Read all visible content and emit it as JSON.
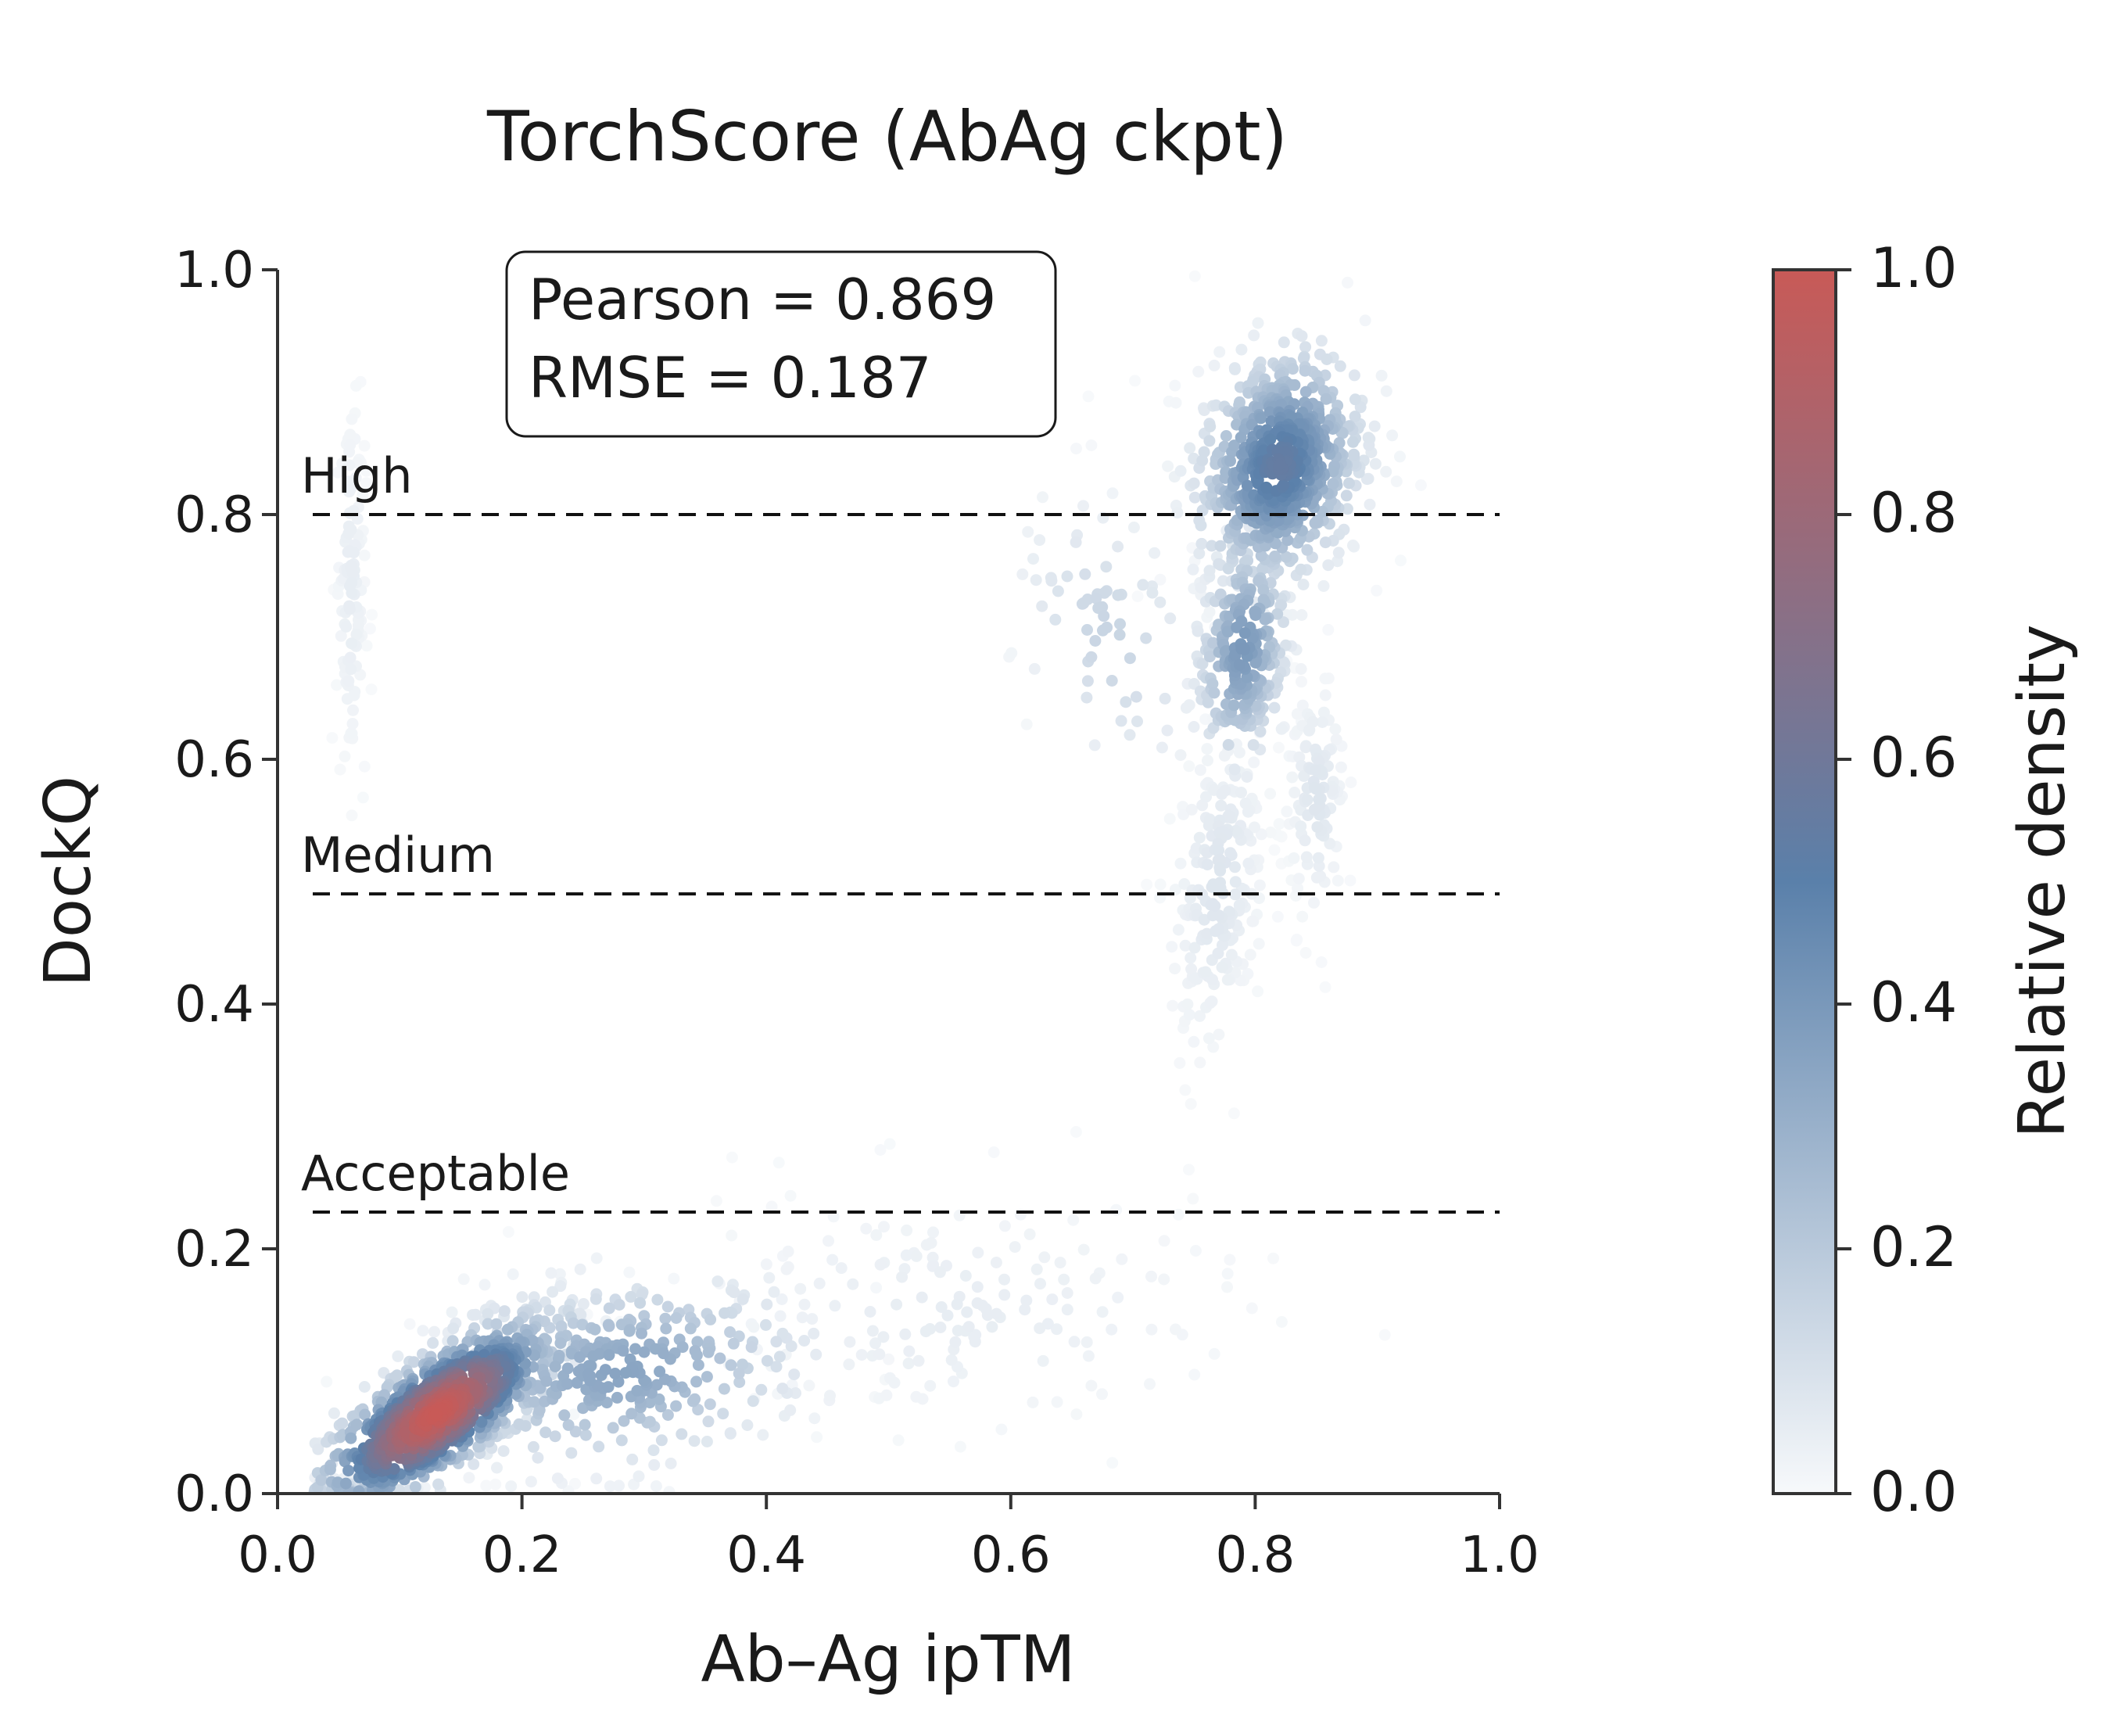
{
  "chart_data": {
    "type": "scatter",
    "title": "TorchScore (AbAg ckpt)",
    "xlabel": "Ab–Ag ipTM",
    "ylabel": "DockQ",
    "xlim": [
      0.0,
      1.0
    ],
    "ylim": [
      0.0,
      1.0
    ],
    "x_ticks": [
      "0.0",
      "0.2",
      "0.4",
      "0.6",
      "0.8",
      "1.0"
    ],
    "y_ticks": [
      "0.0",
      "0.2",
      "0.4",
      "0.6",
      "0.8",
      "1.0"
    ],
    "grid": false,
    "annotation": {
      "lines": [
        "Pearson = 0.869",
        "RMSE = 0.187"
      ],
      "pearson": 0.869,
      "rmse": 0.187
    },
    "thresholds": [
      {
        "label": "High",
        "y": 0.8
      },
      {
        "label": "Medium",
        "y": 0.49
      },
      {
        "label": "Acceptable",
        "y": 0.23
      }
    ],
    "colorbar": {
      "label": "Relative density",
      "range": [
        0.0,
        1.0
      ],
      "ticks": [
        "0.0",
        "0.2",
        "0.4",
        "0.6",
        "0.8",
        "1.0"
      ],
      "colors": {
        "low": "#f7f9fb",
        "mid": "#5a80aa",
        "high": "#c85a57"
      }
    },
    "density_clusters": [
      {
        "name": "dense-low",
        "cx": 0.13,
        "cy": 0.065,
        "sx": 0.05,
        "sy": 0.04,
        "rho": 0.75,
        "n": 900,
        "max_density": 1.0
      },
      {
        "name": "low-tail",
        "cx": 0.28,
        "cy": 0.1,
        "sx": 0.08,
        "sy": 0.04,
        "rho": 0.2,
        "n": 350,
        "max_density": 0.35
      },
      {
        "name": "low-right-sparse",
        "cx": 0.55,
        "cy": 0.15,
        "sx": 0.12,
        "sy": 0.05,
        "rho": 0.0,
        "n": 180,
        "max_density": 0.05
      },
      {
        "name": "mid-vertical",
        "cx": 0.06,
        "cy": 0.74,
        "sx": 0.006,
        "sy": 0.08,
        "rho": 0.0,
        "n": 120,
        "max_density": 0.05
      },
      {
        "name": "high-cluster",
        "cx": 0.82,
        "cy": 0.84,
        "sx": 0.035,
        "sy": 0.05,
        "rho": 0.2,
        "n": 650,
        "max_density": 0.55
      },
      {
        "name": "high-tail",
        "cx": 0.79,
        "cy": 0.69,
        "sx": 0.02,
        "sy": 0.05,
        "rho": 0.2,
        "n": 260,
        "max_density": 0.4
      },
      {
        "name": "mid-tail",
        "cx": 0.77,
        "cy": 0.5,
        "sx": 0.02,
        "sy": 0.07,
        "rho": 0.3,
        "n": 220,
        "max_density": 0.08
      },
      {
        "name": "right-mid",
        "cx": 0.85,
        "cy": 0.57,
        "sx": 0.012,
        "sy": 0.05,
        "rho": 0.0,
        "n": 120,
        "max_density": 0.08
      },
      {
        "name": "off-diagonal",
        "cx": 0.68,
        "cy": 0.7,
        "sx": 0.04,
        "sy": 0.06,
        "rho": -0.3,
        "n": 70,
        "max_density": 0.15
      }
    ]
  }
}
